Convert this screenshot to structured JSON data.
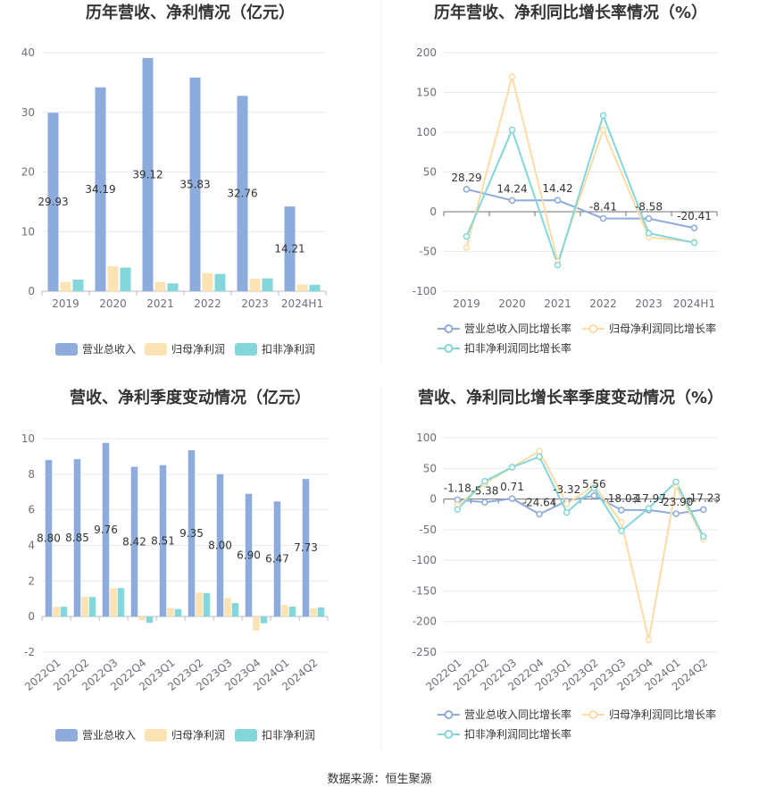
{
  "source": "数据来源：恒生聚源",
  "chart_data": [
    {
      "type": "bar",
      "title": "历年营收、净利情况（亿元）",
      "categories": [
        "2019",
        "2020",
        "2021",
        "2022",
        "2023",
        "2024H1"
      ],
      "ylim": [
        0,
        40
      ],
      "yticks": [
        0,
        10,
        20,
        30,
        40
      ],
      "grid": true,
      "legend_position": "bottom",
      "series": [
        {
          "name": "营业总收入",
          "color": "#8dabdb",
          "values": [
            29.93,
            34.19,
            39.12,
            35.83,
            32.76,
            14.21
          ],
          "labels": [
            "29.93",
            "34.19",
            "39.12",
            "35.83",
            "32.76",
            "14.21"
          ]
        },
        {
          "name": "归母净利润",
          "color": "#fce3b4",
          "values": [
            1.55,
            4.19,
            1.55,
            3.05,
            2.08,
            1.12
          ]
        },
        {
          "name": "扣非净利润",
          "color": "#83d6d9",
          "values": [
            1.95,
            3.97,
            1.31,
            2.9,
            2.16,
            1.08
          ]
        }
      ]
    },
    {
      "type": "line",
      "title": "历年营收、净利同比增长率情况（%）",
      "categories": [
        "2019",
        "2020",
        "2021",
        "2022",
        "2023",
        "2024H1"
      ],
      "ylim": [
        -100,
        200
      ],
      "yticks": [
        -100,
        -50,
        0,
        50,
        100,
        150,
        200
      ],
      "grid": true,
      "legend_position": "bottom",
      "series": [
        {
          "name": "营业总收入同比增长率",
          "color": "#8dabdb",
          "values": [
            28.29,
            14.24,
            14.42,
            -8.41,
            -8.58,
            -20.41
          ],
          "labels": [
            "28.29",
            "14.24",
            "14.42",
            "-8.41",
            "-8.58",
            "-20.41"
          ]
        },
        {
          "name": "归母净利润同比增长率",
          "color": "#fcdca4",
          "values": [
            -45,
            170,
            -63,
            103,
            -32,
            -38
          ]
        },
        {
          "name": "扣非净利润同比增长率",
          "color": "#83d6d9",
          "values": [
            -31,
            103,
            -67,
            121,
            -27,
            -39
          ]
        }
      ]
    },
    {
      "type": "bar",
      "title": "营收、净利季度变动情况（亿元）",
      "categories": [
        "2022Q1",
        "2022Q2",
        "2022Q3",
        "2022Q4",
        "2023Q1",
        "2023Q2",
        "2023Q3",
        "2023Q4",
        "2024Q1",
        "2024Q2"
      ],
      "ylim": [
        -2,
        10
      ],
      "yticks": [
        -2,
        0,
        2,
        4,
        6,
        8,
        10
      ],
      "grid": true,
      "legend_position": "bottom",
      "series": [
        {
          "name": "营业总收入",
          "color": "#8dabdb",
          "values": [
            8.8,
            8.85,
            9.76,
            8.42,
            8.51,
            9.35,
            8.0,
            6.9,
            6.47,
            7.73
          ],
          "labels": [
            "8.80",
            "8.85",
            "9.76",
            "8.42",
            "8.51",
            "9.35",
            "8.00",
            "6.90",
            "6.47",
            "7.73"
          ]
        },
        {
          "name": "归母净利润",
          "color": "#fce3b4",
          "values": [
            0.55,
            1.12,
            1.6,
            -0.22,
            0.48,
            1.36,
            1.05,
            -0.78,
            0.66,
            0.46
          ]
        },
        {
          "name": "扣非净利润",
          "color": "#83d6d9",
          "values": [
            0.55,
            1.1,
            1.6,
            -0.35,
            0.42,
            1.32,
            0.76,
            -0.38,
            0.56,
            0.52
          ]
        }
      ]
    },
    {
      "type": "line",
      "title": "营收、净利同比增长率季度变动情况（%）",
      "categories": [
        "2022Q1",
        "2022Q2",
        "2022Q3",
        "2022Q4",
        "2023Q1",
        "2023Q2",
        "2023Q3",
        "2023Q4",
        "2024Q1",
        "2024Q2"
      ],
      "ylim": [
        -250,
        100
      ],
      "yticks": [
        -250,
        -200,
        -150,
        -100,
        -50,
        0,
        50,
        100
      ],
      "grid": true,
      "legend_position": "bottom",
      "series": [
        {
          "name": "营业总收入同比增长率",
          "color": "#8dabdb",
          "values": [
            -1.18,
            -5.38,
            0.71,
            -24.64,
            -3.32,
            5.56,
            -18.03,
            -17.97,
            -23.9,
            -17.23
          ],
          "labels": [
            "-1.18",
            "-5.38",
            "0.71",
            "-24.64",
            "-3.32",
            "5.56",
            "-18.03",
            "-17.97",
            "-23.90",
            "-17.23"
          ]
        },
        {
          "name": "归母净利润同比增长率",
          "color": "#fcdca4",
          "values": [
            -10,
            25,
            52,
            78,
            -8,
            22,
            -38,
            -230,
            22,
            -65
          ]
        },
        {
          "name": "扣非净利润同比增长率",
          "color": "#83d6d9",
          "values": [
            -17,
            29,
            52,
            69,
            -22,
            18,
            -52,
            -15,
            28,
            -61
          ]
        }
      ]
    }
  ]
}
